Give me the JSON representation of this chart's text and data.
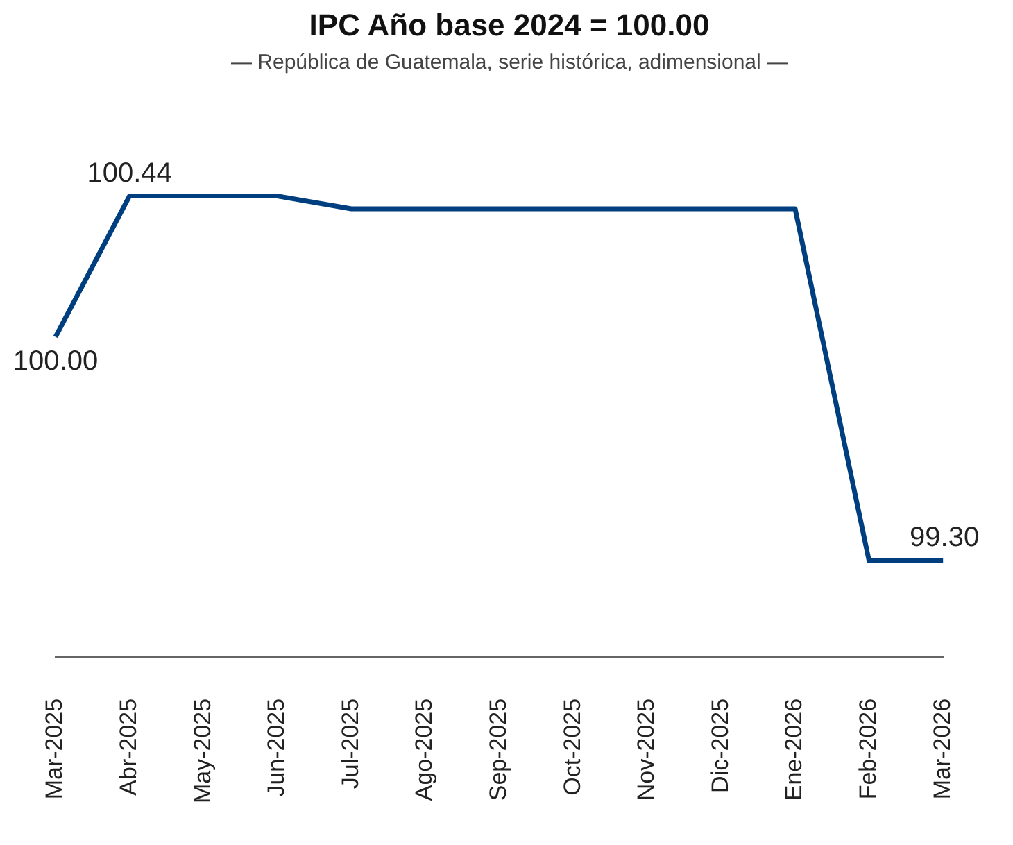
{
  "chart_data": {
    "type": "line",
    "title": "IPC Año base 2024 = 100.00",
    "subtitle": "— República de Guatemala, serie histórica, adimensional —",
    "categories": [
      "Mar-2025",
      "Abr-2025",
      "May-2025",
      "Jun-2025",
      "Jul-2025",
      "Ago-2025",
      "Sep-2025",
      "Oct-2025",
      "Nov-2025",
      "Dic-2025",
      "Ene-2026",
      "Feb-2026",
      "Mar-2026"
    ],
    "series": [
      {
        "color": "#003f7f",
        "values": [
          100.0,
          100.44,
          100.44,
          100.44,
          100.4,
          100.4,
          100.4,
          100.4,
          100.4,
          100.4,
          100.4,
          99.3,
          99.3
        ],
        "value_labels": [
          "100.00",
          "100.44",
          null,
          null,
          null,
          null,
          null,
          null,
          null,
          null,
          null,
          null,
          "99.30"
        ]
      }
    ],
    "grid": false,
    "legend": false,
    "marker": "none",
    "line_style": "solid",
    "tick_labels": "x"
  }
}
